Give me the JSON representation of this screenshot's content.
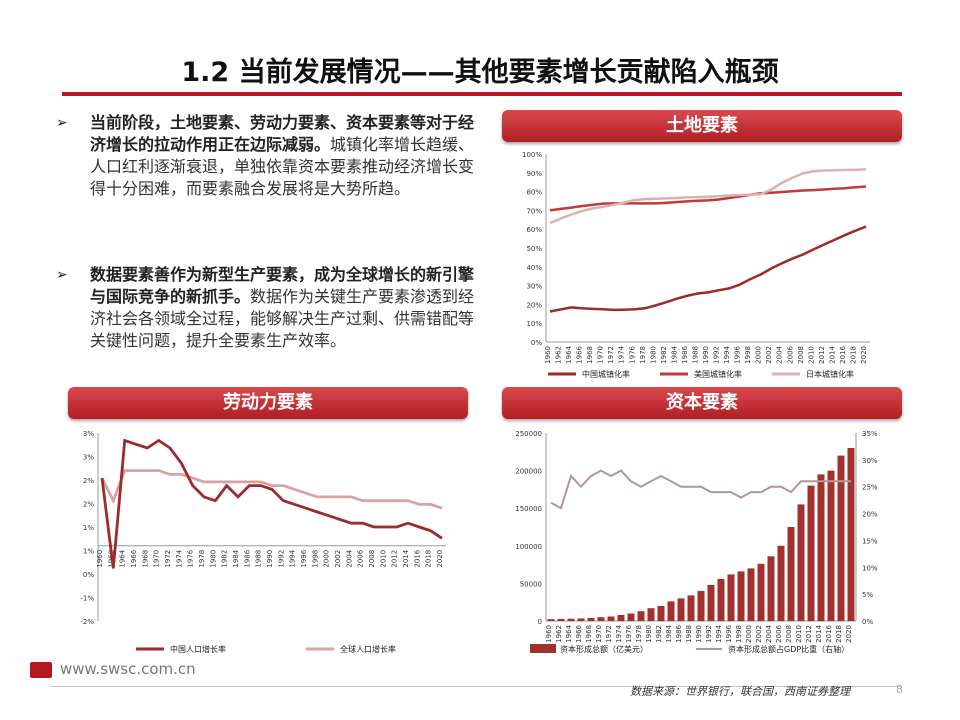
{
  "title": "1.2 当前发展情况——其他要素增长贡献陷入瓶颈",
  "bullets": [
    {
      "marker": "➢",
      "bold": "当前阶段，土地要素、劳动力要素、资本要素等对于经济增长的拉动作用正在边际减弱。",
      "normal": "城镇化率增长趋缓、人口红利逐渐衰退，单独依靠资本要素推动经济增长变得十分困难，而要素融合发展将是大势所趋。"
    },
    {
      "marker": "➢",
      "bold": "数据要素善作为新型生产要素，成为全球增长的新引擎与国际竞争的新抓手。",
      "normal": "数据作为关键生产要素渗透到经济社会各领域全过程，能够解决生产过剩、供需错配等关键性问题，提升全要素生产效率。"
    }
  ],
  "banners": {
    "land": "土地要素",
    "labor": "劳动力要素",
    "capital": "资本要素"
  },
  "footer": {
    "url": "www.swsc.com.cn",
    "source": "数据来源：世界银行，联合国，西南证券整理",
    "page": "8"
  },
  "colors": {
    "dark": "#9e2a2b",
    "light": "#d9a3a3",
    "accent": "#b3191f"
  },
  "chart_data": [
    {
      "id": "land",
      "type": "line",
      "x": [
        1960,
        1962,
        1964,
        1966,
        1968,
        1970,
        1972,
        1974,
        1976,
        1978,
        1980,
        1982,
        1984,
        1986,
        1988,
        1990,
        1992,
        1994,
        1996,
        1998,
        2000,
        2002,
        2004,
        2006,
        2008,
        2010,
        2012,
        2014,
        2016,
        2018,
        2020
      ],
      "yticks": [
        "0%",
        "10%",
        "20%",
        "30%",
        "40%",
        "50%",
        "60%",
        "70%",
        "80%",
        "90%",
        "100%"
      ],
      "ylim": [
        0,
        100
      ],
      "series": [
        {
          "name": "中国城镇化率",
          "color": "#9e2a2b",
          "values": [
            16.2,
            17.3,
            18.4,
            17.9,
            17.6,
            17.4,
            17.1,
            17.2,
            17.4,
            17.9,
            19.4,
            21.1,
            23.0,
            24.5,
            25.8,
            26.4,
            27.5,
            28.5,
            30.5,
            33.4,
            35.9,
            39.1,
            41.8,
            44.3,
            46.5,
            49.2,
            51.8,
            54.3,
            56.8,
            59.2,
            61.4
          ]
        },
        {
          "name": "美国城镇化率",
          "color": "#c0393b",
          "values": [
            70.0,
            70.8,
            71.5,
            72.3,
            72.9,
            73.6,
            73.7,
            73.7,
            73.7,
            73.7,
            73.7,
            74.0,
            74.4,
            74.8,
            75.1,
            75.3,
            75.8,
            76.6,
            77.4,
            78.3,
            79.1,
            79.4,
            79.8,
            80.2,
            80.6,
            80.8,
            81.1,
            81.5,
            81.8,
            82.3,
            82.7
          ]
        },
        {
          "name": "日本城镇化率",
          "color": "#d9b2b2",
          "values": [
            63.3,
            65.6,
            67.8,
            69.6,
            71.0,
            71.9,
            73.0,
            74.1,
            75.5,
            76.0,
            76.2,
            76.4,
            76.6,
            76.9,
            77.1,
            77.3,
            77.6,
            77.9,
            78.2,
            78.4,
            78.6,
            81.0,
            84.6,
            87.3,
            89.7,
            90.8,
            91.2,
            91.4,
            91.5,
            91.6,
            91.8
          ]
        }
      ]
    },
    {
      "id": "labor",
      "type": "line",
      "x": [
        1960,
        1962,
        1964,
        1966,
        1968,
        1970,
        1972,
        1974,
        1976,
        1978,
        1980,
        1982,
        1984,
        1986,
        1988,
        1990,
        1992,
        1994,
        1996,
        1998,
        2000,
        2002,
        2004,
        2006,
        2008,
        2010,
        2012,
        2014,
        2016,
        2018,
        2020
      ],
      "yticks": [
        "-2%",
        "-1%",
        "0%",
        "1%",
        "1%",
        "2%",
        "2%",
        "3%",
        "3%"
      ],
      "ylim": [
        -2,
        3
      ],
      "series": [
        {
          "name": "中国人口增长率",
          "color": "#9e2a2b",
          "values": [
            1.8,
            -0.6,
            2.8,
            2.7,
            2.6,
            2.8,
            2.6,
            2.2,
            1.6,
            1.3,
            1.2,
            1.6,
            1.3,
            1.6,
            1.6,
            1.5,
            1.2,
            1.1,
            1.0,
            0.9,
            0.8,
            0.7,
            0.6,
            0.6,
            0.5,
            0.5,
            0.5,
            0.6,
            0.5,
            0.4,
            0.2
          ]
        },
        {
          "name": "全球人口增长率",
          "color": "#d9a3a3",
          "values": [
            1.8,
            1.2,
            2.0,
            2.0,
            2.0,
            2.0,
            1.9,
            1.9,
            1.8,
            1.7,
            1.7,
            1.7,
            1.7,
            1.7,
            1.7,
            1.6,
            1.6,
            1.5,
            1.4,
            1.3,
            1.3,
            1.3,
            1.3,
            1.2,
            1.2,
            1.2,
            1.2,
            1.2,
            1.1,
            1.1,
            1.0
          ]
        }
      ]
    },
    {
      "id": "capital",
      "type": "bar",
      "x": [
        1960,
        1962,
        1964,
        1966,
        1968,
        1970,
        1972,
        1974,
        1976,
        1978,
        1980,
        1982,
        1984,
        1986,
        1988,
        1990,
        1992,
        1994,
        1996,
        1998,
        2000,
        2002,
        2004,
        2006,
        2008,
        2010,
        2012,
        2014,
        2016,
        2018,
        2020
      ],
      "yticks_left": [
        "0",
        "50000",
        "100000",
        "150000",
        "200000",
        "250000"
      ],
      "yticks_right": [
        "0%",
        "5%",
        "10%",
        "15%",
        "20%",
        "25%",
        "30%",
        "35%"
      ],
      "ylim_left": [
        0,
        250000
      ],
      "ylim_right": [
        0,
        35
      ],
      "series": [
        {
          "name": "资本形成总额（亿美元）",
          "type": "bar",
          "color": "#a2302f",
          "values": [
            2500,
            2800,
            3000,
            3500,
            4000,
            5000,
            6000,
            8000,
            10000,
            13000,
            17000,
            20000,
            26000,
            30000,
            34000,
            40000,
            48000,
            56000,
            62000,
            66000,
            70000,
            76000,
            86000,
            100000,
            125000,
            155000,
            180000,
            195000,
            200000,
            220000,
            230000
          ]
        },
        {
          "name": "资本形成总额占GDP比重（右轴）",
          "type": "line",
          "color": "#b59595",
          "values": [
            22,
            21,
            27,
            25,
            27,
            28,
            27,
            28,
            26,
            25,
            26,
            27,
            26,
            25,
            25,
            25,
            24,
            24,
            24,
            23,
            24,
            24,
            25,
            25,
            24,
            26,
            26,
            26,
            26,
            26,
            26
          ]
        }
      ]
    }
  ]
}
